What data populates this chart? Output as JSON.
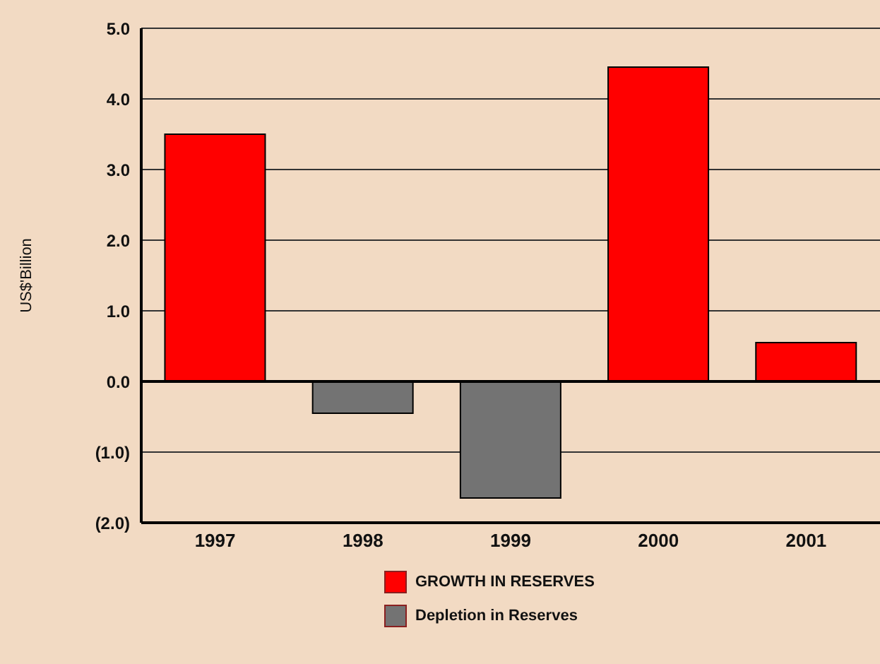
{
  "chart_data": {
    "type": "bar",
    "ylabel": "US$'Billion",
    "categories": [
      "1997",
      "1998",
      "1999",
      "2000",
      "2001"
    ],
    "series": [
      {
        "name": "GROWTH IN RESERVES",
        "color": "#ff0000",
        "values": [
          3.5,
          null,
          null,
          4.45,
          0.55
        ]
      },
      {
        "name": "Depletion in Reserves",
        "color": "#737373",
        "values": [
          null,
          -0.45,
          -1.65,
          null,
          null
        ]
      }
    ],
    "stacked": true,
    "ylim": [
      -2,
      5
    ],
    "yticks": [
      {
        "value": -2,
        "label": "(2.0)"
      },
      {
        "value": -1,
        "label": "(1.0)"
      },
      {
        "value": 0,
        "label": "0.0"
      },
      {
        "value": 1,
        "label": "1.0"
      },
      {
        "value": 2,
        "label": "2.0"
      },
      {
        "value": 3,
        "label": "3.0"
      },
      {
        "value": 4,
        "label": "4.0"
      },
      {
        "value": 5,
        "label": "5.0"
      }
    ],
    "grid": "y",
    "legend": "bottom"
  }
}
